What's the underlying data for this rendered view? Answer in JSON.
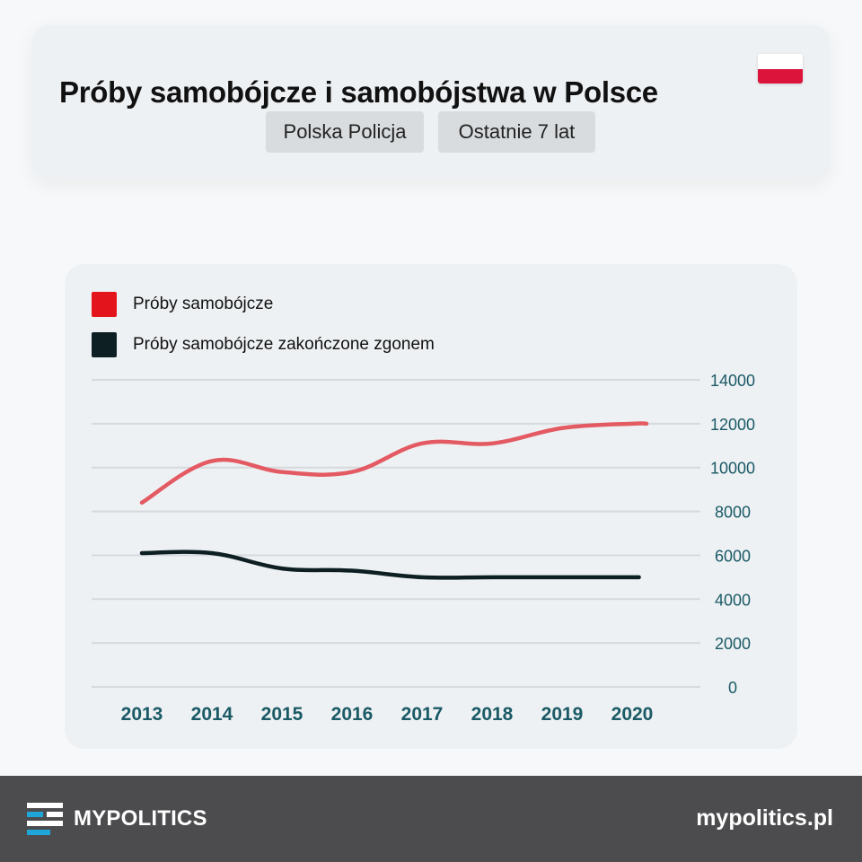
{
  "header": {
    "title": "Próby samobójcze i samobójstwa w Polsce",
    "source_label": "Polska Policja",
    "period_label": "Ostatnie 7 lat"
  },
  "colors": {
    "series_attempts": "#e35a63",
    "series_deaths": "#0d1f22",
    "legend_attempts": "#e3141b",
    "legend_deaths": "#0d1f22",
    "axis_text": "#1a5a66",
    "footer_bg": "#4c4c4e",
    "logo_accent": "#1fa6d8"
  },
  "legend": [
    {
      "label": "Próby samobójcze",
      "color": "#e3141b"
    },
    {
      "label": "Próby samobójcze zakończone zgonem",
      "color": "#0d1f22"
    }
  ],
  "chart_data": {
    "type": "line",
    "title": "Próby samobójcze i samobójstwa w Polsce",
    "xlabel": "",
    "ylabel": "",
    "x": [
      "2013",
      "2014",
      "2015",
      "2016",
      "2017",
      "2018",
      "2019",
      "2020"
    ],
    "ylim": [
      0,
      14000
    ],
    "y_ticks": [
      "0",
      "2000",
      "4000",
      "6000",
      "8000",
      "10000",
      "12000",
      "14000"
    ],
    "y_axis_side": "right",
    "grid": true,
    "legend_position": "top-left",
    "series": [
      {
        "name": "Próby samobójcze",
        "values": [
          8400,
          10300,
          9800,
          9800,
          11100,
          11100,
          11800,
          12000
        ]
      },
      {
        "name": "Próby samobójcze zakończone zgonem",
        "values": [
          6100,
          6100,
          5400,
          5300,
          5000,
          5000,
          5000,
          5000
        ]
      }
    ]
  },
  "footer": {
    "brand": "MYPOLITICS",
    "site": "mypolitics.pl",
    "logo_icon": "stacked-bars-logo-icon"
  }
}
